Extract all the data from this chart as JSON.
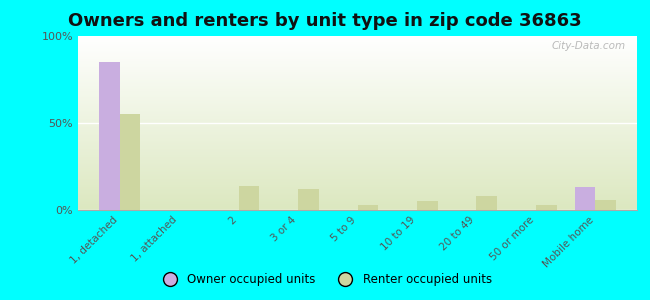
{
  "title": "Owners and renters by unit type in zip code 36863",
  "categories": [
    "1, detached",
    "1, attached",
    "2",
    "3 or 4",
    "5 to 9",
    "10 to 19",
    "20 to 49",
    "50 or more",
    "Mobile home"
  ],
  "owner_values": [
    85,
    0,
    0,
    0,
    0,
    0,
    0,
    0,
    13
  ],
  "renter_values": [
    55,
    0,
    14,
    12,
    3,
    5,
    8,
    3,
    6
  ],
  "owner_color": "#c9aee0",
  "renter_color": "#cdd6a0",
  "background_color": "#00ffff",
  "ylim": [
    0,
    100
  ],
  "yticks": [
    0,
    50,
    100
  ],
  "ytick_labels": [
    "0%",
    "50%",
    "100%"
  ],
  "bar_width": 0.35,
  "title_fontsize": 13,
  "watermark": "City-Data.com"
}
